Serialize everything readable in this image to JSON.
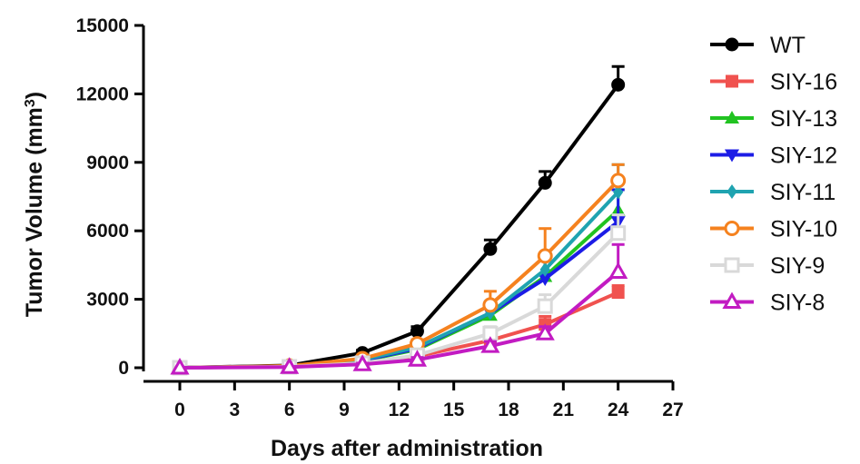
{
  "chart_data": {
    "type": "line",
    "xlabel": "Days after administration",
    "ylabel_main": "Tumor Volume (mm",
    "ylabel_sup": "3",
    "ylabel_close": ")",
    "xlim": [
      -3,
      27
    ],
    "ylim": [
      -500,
      15000
    ],
    "xticks": [
      0,
      3,
      6,
      9,
      12,
      15,
      18,
      21,
      24,
      27
    ],
    "yticks": [
      0,
      3000,
      6000,
      9000,
      12000,
      15000
    ],
    "x": [
      0,
      6,
      10,
      13,
      17,
      20,
      24
    ],
    "legend_position": "right",
    "series": [
      {
        "name": "WT",
        "color": "#000000",
        "marker": "circle",
        "values": [
          0,
          100,
          650,
          1600,
          5200,
          8100,
          12400
        ],
        "errors": [
          0,
          30,
          120,
          200,
          400,
          500,
          800
        ]
      },
      {
        "name": "SIY-16",
        "color": "#f0524f",
        "marker": "square",
        "values": [
          0,
          50,
          200,
          500,
          1200,
          1900,
          3300
        ],
        "errors": [
          0,
          20,
          60,
          120,
          250,
          350,
          300
        ]
      },
      {
        "name": "SIY-13",
        "color": "#21c321",
        "marker": "triangle-up",
        "values": [
          0,
          60,
          300,
          800,
          2300,
          4000,
          6900
        ],
        "errors": [
          0,
          20,
          80,
          150,
          400,
          700,
          900
        ]
      },
      {
        "name": "SIY-12",
        "color": "#1c1ce6",
        "marker": "triangle-down",
        "values": [
          0,
          60,
          320,
          850,
          2400,
          3900,
          6400
        ],
        "errors": [
          0,
          20,
          80,
          150,
          400,
          1100,
          1400
        ]
      },
      {
        "name": "SIY-11",
        "color": "#1fa3b0",
        "marker": "diamond",
        "values": [
          0,
          70,
          350,
          900,
          2400,
          4300,
          7700
        ],
        "errors": [
          0,
          20,
          80,
          150,
          500,
          700,
          1200
        ]
      },
      {
        "name": "SIY-10",
        "color": "#f5821f",
        "marker": "circle-open",
        "values": [
          0,
          80,
          400,
          1050,
          2750,
          4900,
          8200
        ],
        "errors": [
          0,
          20,
          90,
          180,
          600,
          1200,
          700
        ]
      },
      {
        "name": "SIY-9",
        "color": "#d9d9d9",
        "marker": "square-open",
        "values": [
          0,
          40,
          200,
          550,
          1500,
          2700,
          5900
        ],
        "errors": [
          0,
          20,
          60,
          120,
          300,
          500,
          800
        ]
      },
      {
        "name": "SIY-8",
        "color": "#c21bc2",
        "marker": "triangle-open",
        "values": [
          0,
          30,
          150,
          350,
          950,
          1500,
          4200
        ],
        "errors": [
          0,
          20,
          50,
          100,
          200,
          300,
          1200
        ]
      }
    ]
  }
}
